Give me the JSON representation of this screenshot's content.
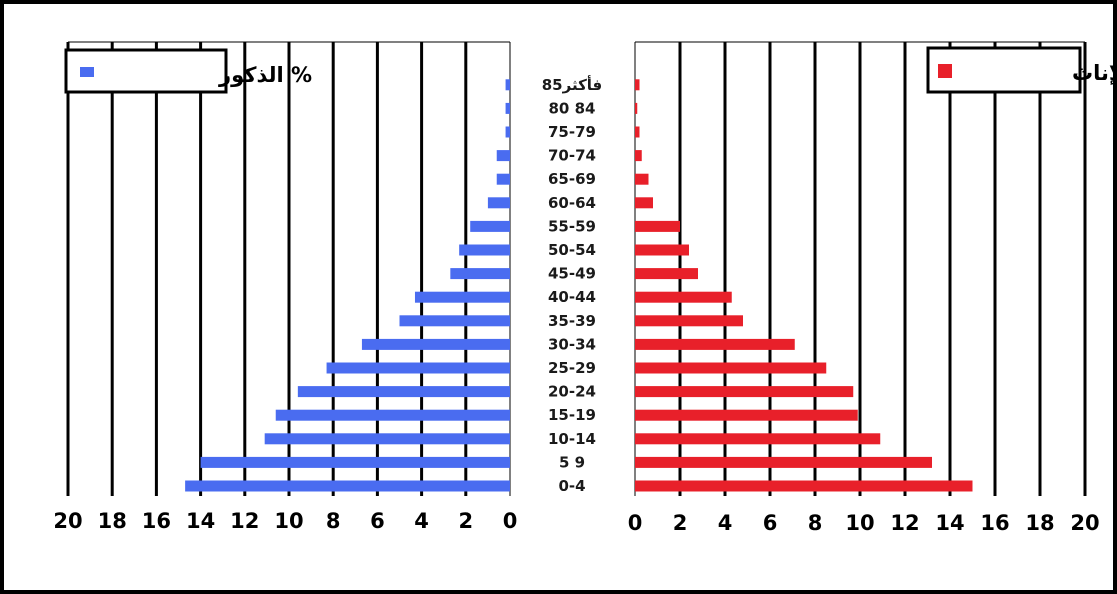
{
  "chart_data": {
    "type": "bar",
    "subtype": "population-pyramid",
    "categories": [
      "0-4",
      "5-9",
      "10-14",
      "15-19",
      "20-24",
      "25-29",
      "30-34",
      "35-39",
      "40-44",
      "45-49",
      "50-54",
      "55-59",
      "60-64",
      "65-69",
      "70-74",
      "75-79",
      "80-84",
      "85+"
    ],
    "category_labels": [
      "0-4",
      "5 9",
      "10-14",
      "15-19",
      "20-24",
      "25-29",
      "30-34",
      "35-39",
      "40-44",
      "45-49",
      "50-54",
      "55-59",
      "60-64",
      "65-69",
      "70-74",
      "75-79",
      "80 84",
      "85فأكثر"
    ],
    "series": [
      {
        "name": "% الذكور",
        "side": "left",
        "color": "#4a6cf0",
        "values": [
          14.7,
          14.0,
          11.1,
          10.6,
          9.6,
          8.3,
          6.7,
          5.0,
          4.3,
          2.7,
          2.3,
          1.8,
          1.0,
          0.6,
          0.6,
          0.2,
          0.2,
          0.2
        ]
      },
      {
        "name": "% الإناث",
        "side": "right",
        "color": "#e8202a",
        "values": [
          15.0,
          13.2,
          10.9,
          9.9,
          9.7,
          8.5,
          7.1,
          4.8,
          4.3,
          2.8,
          2.4,
          2.0,
          0.8,
          0.6,
          0.3,
          0.2,
          0.1,
          0.2
        ]
      }
    ],
    "x_ticks_left": [
      "20",
      "18",
      "16",
      "14",
      "12",
      "10",
      "8",
      "6",
      "4",
      "2",
      "0"
    ],
    "x_ticks_right": [
      "0",
      "2",
      "4",
      "6",
      "8",
      "10",
      "12",
      "14",
      "16",
      "18",
      "20"
    ],
    "xlim": [
      0,
      20
    ],
    "grid": "vertical",
    "legend_left": "% الذكور",
    "legend_right": "% الإناث",
    "legend_placement": "top-corners"
  }
}
